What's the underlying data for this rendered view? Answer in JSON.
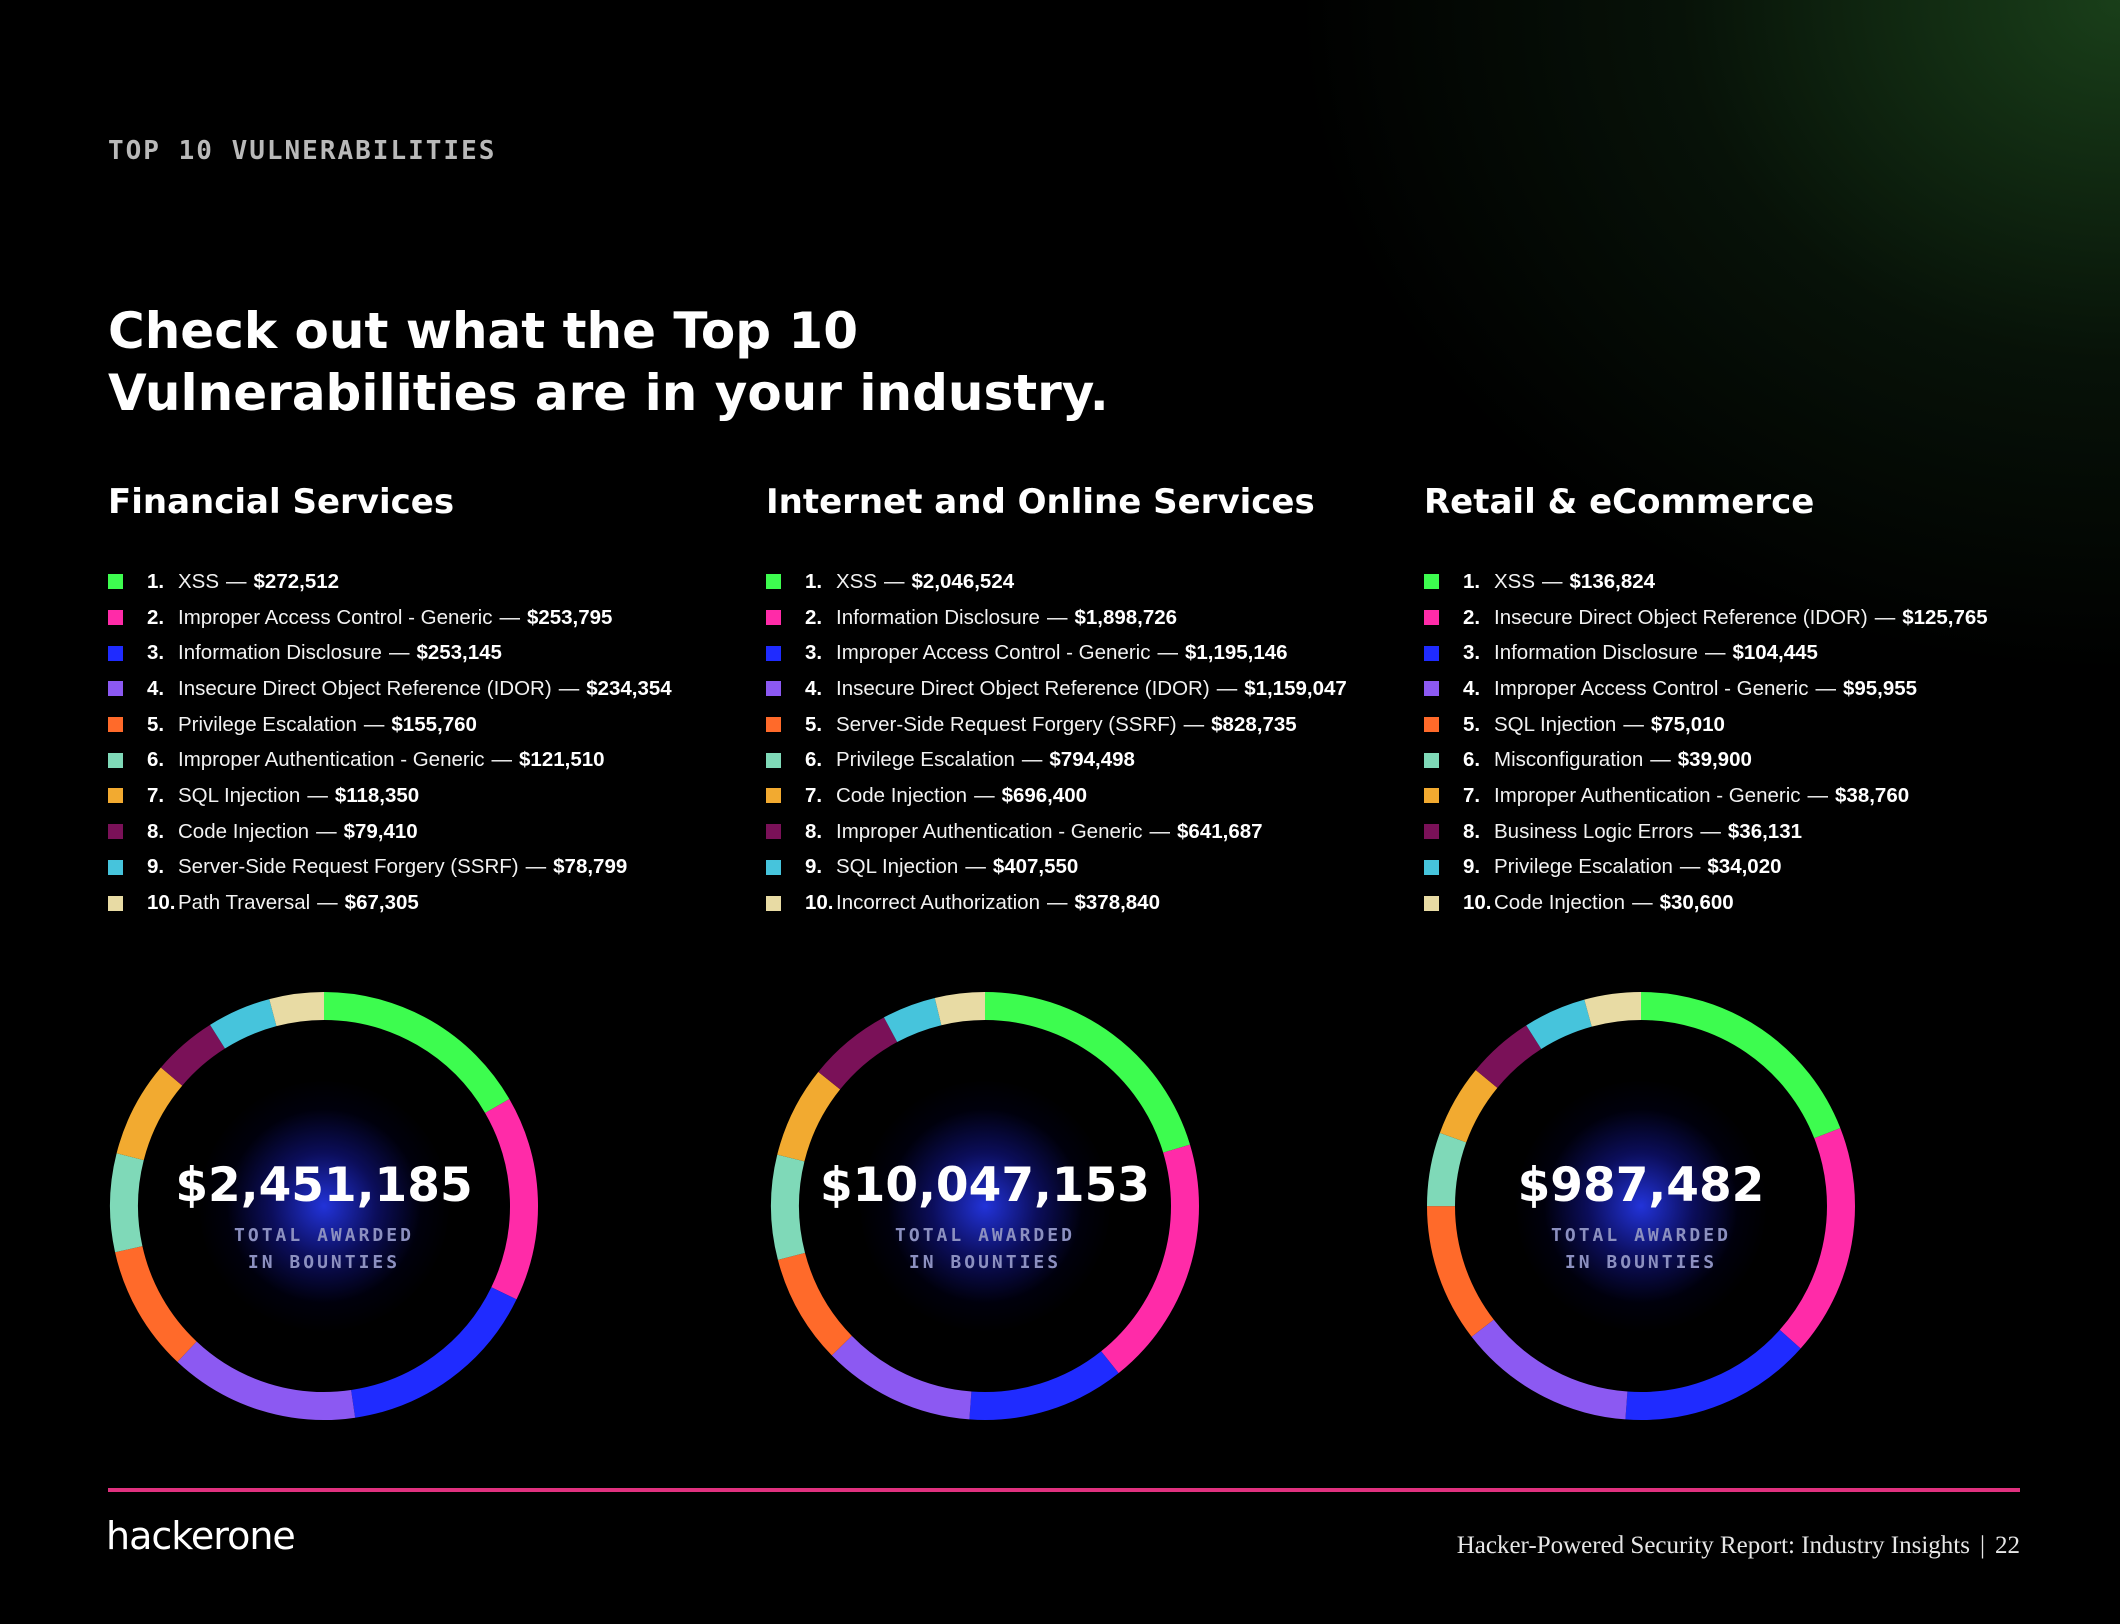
{
  "eyebrow": "TOP 10 VULNERABILITIES",
  "headline": {
    "line1": "Check out what the Top 10",
    "line2": "Vulnerabilities are in your industry."
  },
  "colors": [
    "#3dfc4f",
    "#ff2ba8",
    "#1f2bff",
    "#8c59f2",
    "#ff6a2a",
    "#7fd9b8",
    "#f2aa30",
    "#7a1158",
    "#46c4dc",
    "#e8dba4"
  ],
  "columns": [
    {
      "title": "Financial Services",
      "items": [
        {
          "rank": "1.",
          "name": "XSS",
          "amount": "$272,512"
        },
        {
          "rank": "2.",
          "name": "Improper Access Control - Generic",
          "amount": "$253,795"
        },
        {
          "rank": "3.",
          "name": "Information Disclosure",
          "amount": "$253,145"
        },
        {
          "rank": "4.",
          "name": "Insecure Direct Object Reference (IDOR)",
          "amount": "$234,354"
        },
        {
          "rank": "5.",
          "name": "Privilege Escalation",
          "amount": "$155,760"
        },
        {
          "rank": "6.",
          "name": "Improper Authentication - Generic",
          "amount": "$121,510"
        },
        {
          "rank": "7.",
          "name": "SQL Injection",
          "amount": "$118,350"
        },
        {
          "rank": "8.",
          "name": "Code Injection",
          "amount": "$79,410"
        },
        {
          "rank": "9.",
          "name": "Server-Side Request Forgery (SSRF)",
          "amount": "$78,799"
        },
        {
          "rank": "10.",
          "name": "Path Traversal",
          "amount": "$67,305"
        }
      ],
      "total": "$2,451,185"
    },
    {
      "title": "Internet and Online Services",
      "items": [
        {
          "rank": "1.",
          "name": "XSS",
          "amount": "$2,046,524"
        },
        {
          "rank": "2.",
          "name": "Information Disclosure",
          "amount": "$1,898,726"
        },
        {
          "rank": "3.",
          "name": "Improper Access Control - Generic",
          "amount": "$1,195,146"
        },
        {
          "rank": "4.",
          "name": "Insecure Direct Object Reference (IDOR)",
          "amount": "$1,159,047"
        },
        {
          "rank": "5.",
          "name": "Server-Side Request Forgery (SSRF)",
          "amount": "$828,735"
        },
        {
          "rank": "6.",
          "name": "Privilege Escalation",
          "amount": "$794,498"
        },
        {
          "rank": "7.",
          "name": "Code Injection",
          "amount": "$696,400"
        },
        {
          "rank": "8.",
          "name": "Improper Authentication - Generic",
          "amount": "$641,687"
        },
        {
          "rank": "9.",
          "name": "SQL Injection",
          "amount": "$407,550"
        },
        {
          "rank": "10.",
          "name": "Incorrect Authorization",
          "amount": "$378,840"
        }
      ],
      "total": "$10,047,153"
    },
    {
      "title": "Retail & eCommerce",
      "items": [
        {
          "rank": "1.",
          "name": "XSS",
          "amount": "$136,824"
        },
        {
          "rank": "2.",
          "name": "Insecure Direct Object Reference (IDOR)",
          "amount": "$125,765"
        },
        {
          "rank": "3.",
          "name": "Information Disclosure",
          "amount": "$104,445"
        },
        {
          "rank": "4.",
          "name": "Improper Access Control - Generic",
          "amount": "$95,955"
        },
        {
          "rank": "5.",
          "name": "SQL Injection",
          "amount": "$75,010"
        },
        {
          "rank": "6.",
          "name": "Misconfiguration",
          "amount": "$39,900"
        },
        {
          "rank": "7.",
          "name": "Improper Authentication - Generic",
          "amount": "$38,760"
        },
        {
          "rank": "8.",
          "name": "Business Logic Errors",
          "amount": "$36,131"
        },
        {
          "rank": "9.",
          "name": "Privilege Escalation",
          "amount": "$34,020"
        },
        {
          "rank": "10.",
          "name": "Code Injection",
          "amount": "$30,600"
        }
      ],
      "total": "$987,482"
    }
  ],
  "total_label_line1": "TOTAL AWARDED",
  "total_label_line2": "IN BOUNTIES",
  "chart_data": [
    {
      "type": "pie",
      "categories": [
        "XSS",
        "Improper Access Control - Generic",
        "Information Disclosure",
        "Insecure Direct Object Reference (IDOR)",
        "Privilege Escalation",
        "Improper Authentication - Generic",
        "SQL Injection",
        "Code Injection",
        "Server-Side Request Forgery (SSRF)",
        "Path Traversal"
      ],
      "values": [
        272512,
        253795,
        253145,
        234354,
        155760,
        121510,
        118350,
        79410,
        78799,
        67305
      ],
      "title": "Financial Services"
    },
    {
      "type": "pie",
      "categories": [
        "XSS",
        "Information Disclosure",
        "Improper Access Control - Generic",
        "Insecure Direct Object Reference (IDOR)",
        "Server-Side Request Forgery (SSRF)",
        "Privilege Escalation",
        "Code Injection",
        "Improper Authentication - Generic",
        "SQL Injection",
        "Incorrect Authorization"
      ],
      "values": [
        2046524,
        1898726,
        1195146,
        1159047,
        828735,
        794498,
        696400,
        641687,
        407550,
        378840
      ],
      "title": "Internet and Online Services"
    },
    {
      "type": "pie",
      "categories": [
        "XSS",
        "Insecure Direct Object Reference (IDOR)",
        "Information Disclosure",
        "Improper Access Control - Generic",
        "SQL Injection",
        "Misconfiguration",
        "Improper Authentication - Generic",
        "Business Logic Errors",
        "Privilege Escalation",
        "Code Injection"
      ],
      "values": [
        136824,
        125765,
        104445,
        95955,
        75010,
        39900,
        38760,
        36131,
        34020,
        30600
      ],
      "title": "Retail & eCommerce"
    }
  ],
  "footer": {
    "logo": "hackerone",
    "report": "Hacker-Powered Security Report: Industry Insights",
    "divider": "|",
    "page": "22"
  }
}
